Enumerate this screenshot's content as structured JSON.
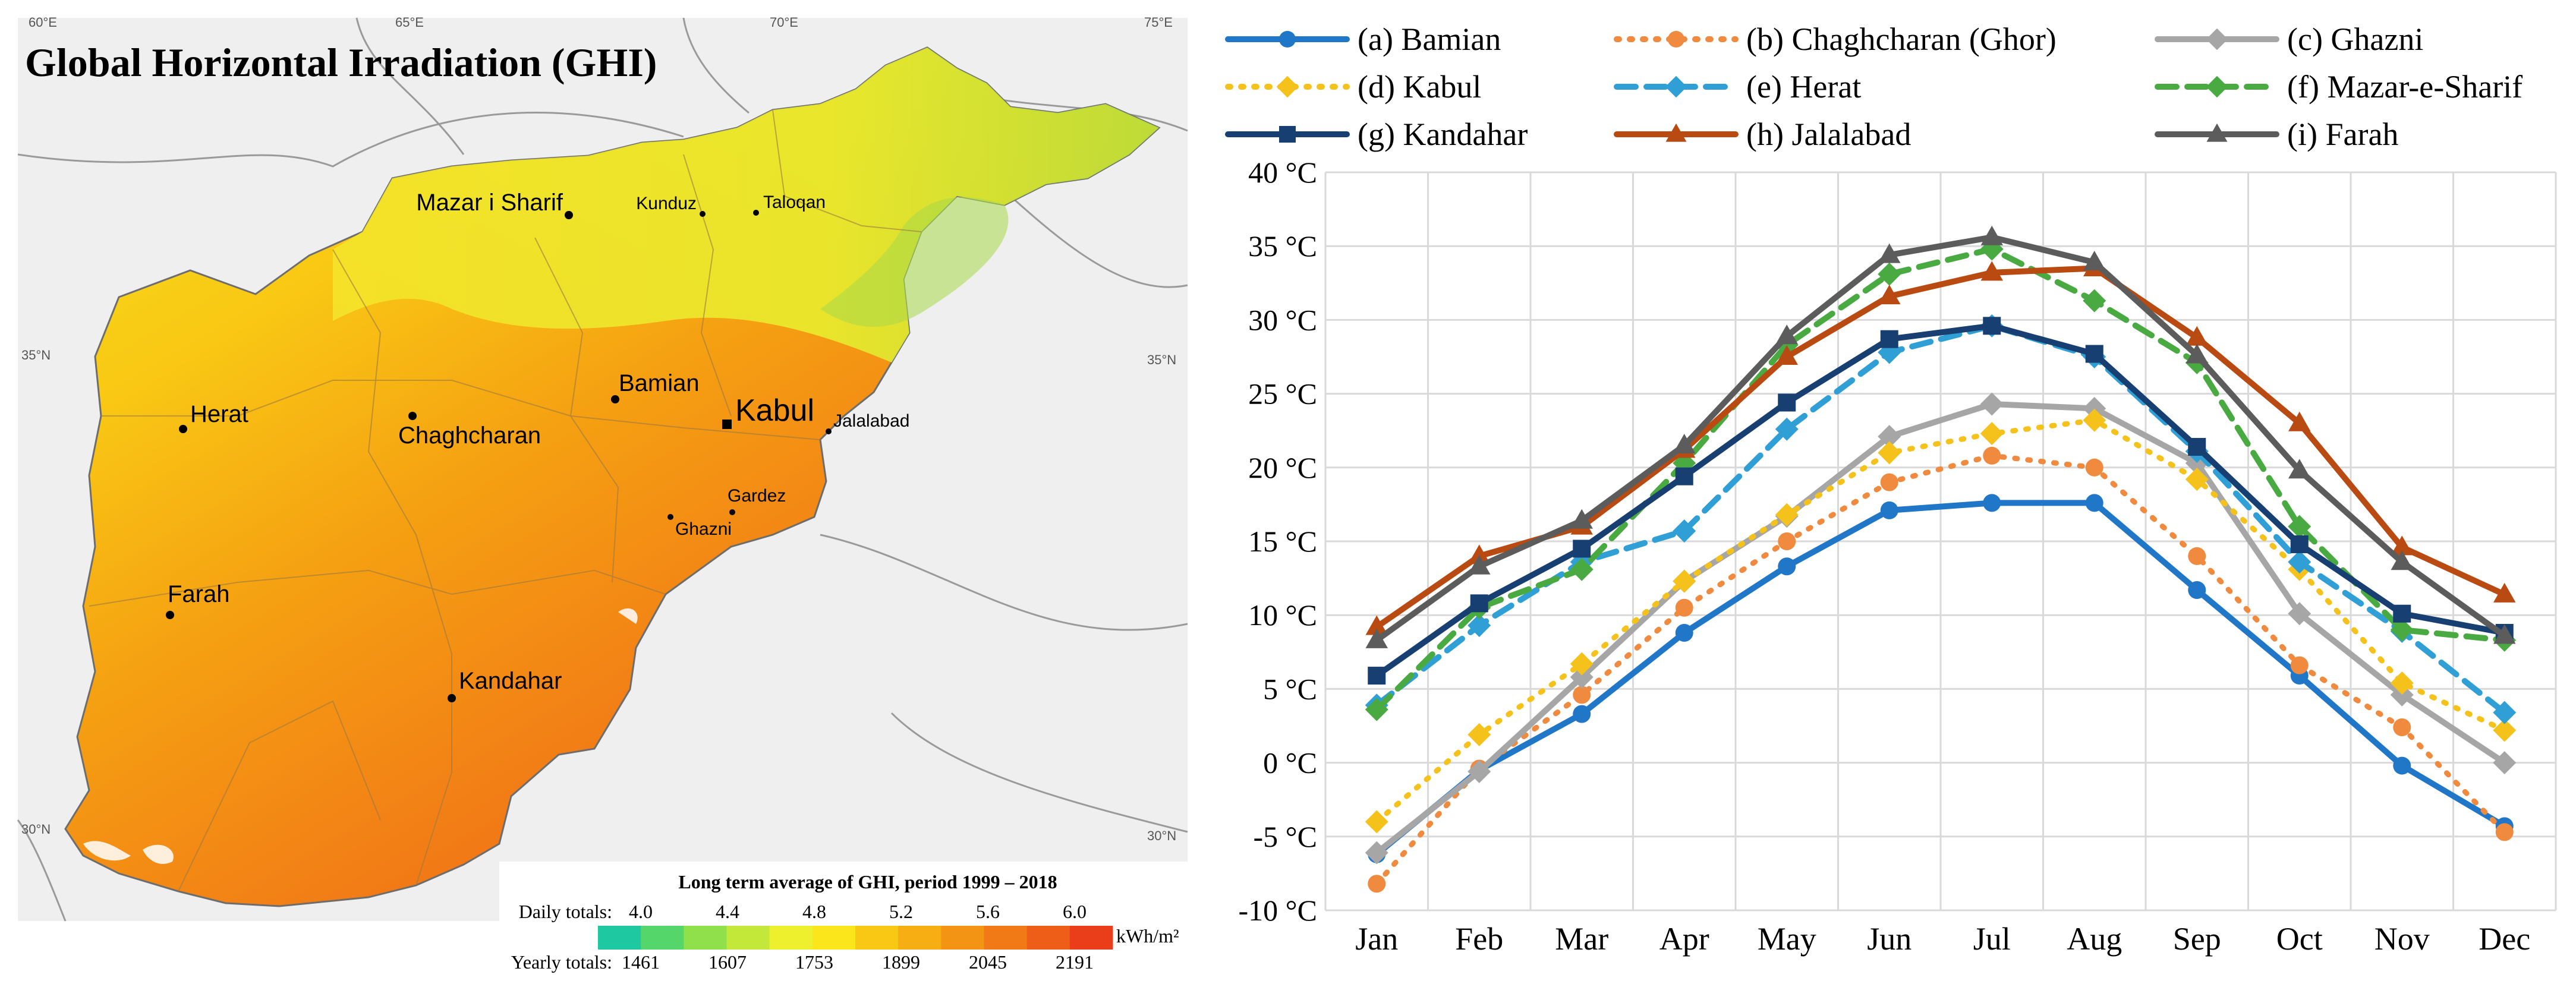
{
  "map": {
    "title": "Global Horizontal Irradiation (GHI)",
    "graticule": {
      "lon": [
        "60°E",
        "65°E",
        "70°E",
        "75°E"
      ],
      "lat_left": [
        "35°N",
        "30°N"
      ],
      "lat_right": [
        "35°N",
        "30°N"
      ]
    },
    "cities": [
      {
        "name": "Mazar i Sharif",
        "size": "large"
      },
      {
        "name": "Kunduz",
        "size": "small"
      },
      {
        "name": "Taloqan",
        "size": "small"
      },
      {
        "name": "Herat",
        "size": "large"
      },
      {
        "name": "Chaghcharan",
        "size": "large"
      },
      {
        "name": "Bamian",
        "size": "large"
      },
      {
        "name": "Kabul",
        "size": "capital"
      },
      {
        "name": "Jalalabad",
        "size": "small"
      },
      {
        "name": "Gardez",
        "size": "small"
      },
      {
        "name": "Ghazni",
        "size": "small"
      },
      {
        "name": "Farah",
        "size": "large"
      },
      {
        "name": "Kandahar",
        "size": "large"
      }
    ],
    "legend": {
      "title": "Long term average of GHI, period 1999 – 2018",
      "daily_label": "Daily totals:",
      "daily_ticks": [
        "4.0",
        "4.4",
        "4.8",
        "5.2",
        "5.6",
        "6.0"
      ],
      "yearly_label": "Yearly totals:",
      "yearly_ticks": [
        "1461",
        "1607",
        "1753",
        "1899",
        "2045",
        "2191"
      ],
      "unit": "kWh/m²",
      "colors": [
        "#1ec8a0",
        "#55d66a",
        "#8fe04a",
        "#c4e83a",
        "#eef02e",
        "#fbe61c",
        "#f9c814",
        "#f7ae12",
        "#f49414",
        "#f27a16",
        "#ef5e18",
        "#ea3e1a"
      ]
    }
  },
  "chart_data": {
    "type": "line",
    "categories": [
      "Jan",
      "Feb",
      "Mar",
      "Apr",
      "May",
      "Jun",
      "Jul",
      "Aug",
      "Sep",
      "Oct",
      "Nov",
      "Dec"
    ],
    "ylim": [
      -10,
      40
    ],
    "yticks": [
      "-10 °C",
      "-5 °C",
      "0 °C",
      "5 °C",
      "10 °C",
      "15 °C",
      "20 °C",
      "25 °C",
      "30 °C",
      "35 °C",
      "40 °C"
    ],
    "grid": true,
    "legend_position": "top",
    "series": [
      {
        "name": "(a) Bamian",
        "color": "#2077c8",
        "dash": "solid",
        "marker": "circle",
        "values": [
          -6.2,
          -0.5,
          3.3,
          8.8,
          13.3,
          17.1,
          17.6,
          17.6,
          11.7,
          5.9,
          -0.2,
          -4.3
        ]
      },
      {
        "name": "(b) Chaghcharan (Ghor)",
        "color": "#f08a3e",
        "dash": "dot",
        "marker": "circle",
        "values": [
          -8.2,
          -0.4,
          4.6,
          10.5,
          15.0,
          19.0,
          20.8,
          20.0,
          14.0,
          6.6,
          2.4,
          -4.7
        ]
      },
      {
        "name": "(c) Ghazni",
        "color": "#a6a6a6",
        "dash": "solid",
        "marker": "diamond",
        "values": [
          -6.1,
          -0.6,
          5.8,
          12.3,
          16.7,
          22.1,
          24.3,
          24.0,
          20.3,
          10.1,
          4.6,
          0.0
        ]
      },
      {
        "name": "(d) Kabul",
        "color": "#f5c21b",
        "dash": "dot",
        "marker": "diamond",
        "values": [
          -4.0,
          1.9,
          6.7,
          12.3,
          16.8,
          21.0,
          22.3,
          23.2,
          19.2,
          13.1,
          5.4,
          2.2
        ]
      },
      {
        "name": "(e) Herat",
        "color": "#2f9fd6",
        "dash": "dash",
        "marker": "diamond",
        "values": [
          3.9,
          9.3,
          13.6,
          15.7,
          22.6,
          27.8,
          29.6,
          27.5,
          21.1,
          13.6,
          8.9,
          3.4
        ]
      },
      {
        "name": "(f) Mazar-e-Sharif",
        "color": "#4aaa42",
        "dash": "dash",
        "marker": "diamond",
        "values": [
          3.6,
          10.5,
          13.1,
          20.3,
          28.3,
          33.1,
          34.8,
          31.3,
          27.1,
          16.0,
          9.0,
          8.3
        ]
      },
      {
        "name": "(g) Kandahar",
        "color": "#183f72",
        "dash": "solid",
        "marker": "square",
        "values": [
          5.9,
          10.8,
          14.5,
          19.4,
          24.4,
          28.7,
          29.6,
          27.7,
          21.4,
          14.8,
          10.1,
          8.8
        ]
      },
      {
        "name": "(h) Jalalabad",
        "color": "#b84a12",
        "dash": "solid",
        "marker": "triangle",
        "values": [
          9.2,
          14.0,
          16.0,
          21.2,
          27.5,
          31.6,
          33.2,
          33.5,
          28.8,
          23.0,
          14.6,
          11.4
        ]
      },
      {
        "name": "(i) Farah",
        "color": "#5c5c5c",
        "dash": "solid",
        "marker": "triangle",
        "values": [
          8.3,
          13.3,
          16.4,
          21.5,
          28.9,
          34.4,
          35.6,
          33.9,
          27.6,
          19.8,
          13.6,
          8.6
        ]
      }
    ]
  }
}
